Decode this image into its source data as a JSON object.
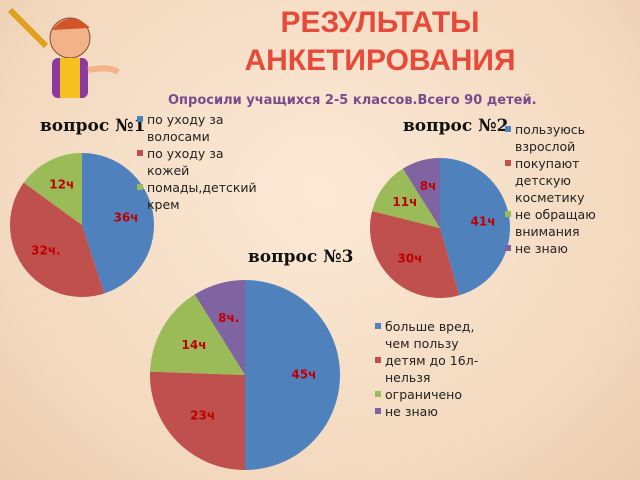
{
  "title": "РЕЗУЛЬТАТЫ АНКЕТИРОВАНИЯ",
  "subtitle": "Опросили учащихся 2-5 классов.Всего 90 детей.",
  "chart_data": [
    {
      "type": "pie",
      "title": "вопрос №1",
      "categories": [
        "по уходу за волосами",
        "по уходу за кожей",
        "помады,детский крем"
      ],
      "values": [
        36,
        32,
        12
      ],
      "value_labels": [
        "36ч",
        "32ч.",
        "12ч"
      ],
      "colors": [
        "#4f81bd",
        "#c0504d",
        "#9bbb59"
      ]
    },
    {
      "type": "pie",
      "title": "вопрос №2",
      "categories": [
        "пользуюсь взрослой",
        "покупают детскую косметику",
        "не обращаю внимания",
        "не знаю"
      ],
      "values": [
        41,
        30,
        11,
        8
      ],
      "value_labels": [
        "41ч",
        "30ч",
        "11ч",
        "8ч"
      ],
      "colors": [
        "#4f81bd",
        "#c0504d",
        "#9bbb59",
        "#8064a2"
      ]
    },
    {
      "type": "pie",
      "title": "вопрос №3",
      "categories": [
        "больше вред, чем пользу",
        "детям до 16л-нельзя",
        "ограничено",
        "не знаю"
      ],
      "values": [
        45,
        23,
        14,
        8
      ],
      "value_labels": [
        "45ч",
        "23ч",
        "14ч",
        "8ч."
      ],
      "colors": [
        "#4f81bd",
        "#c0504d",
        "#9bbb59",
        "#8064a2"
      ]
    }
  ]
}
